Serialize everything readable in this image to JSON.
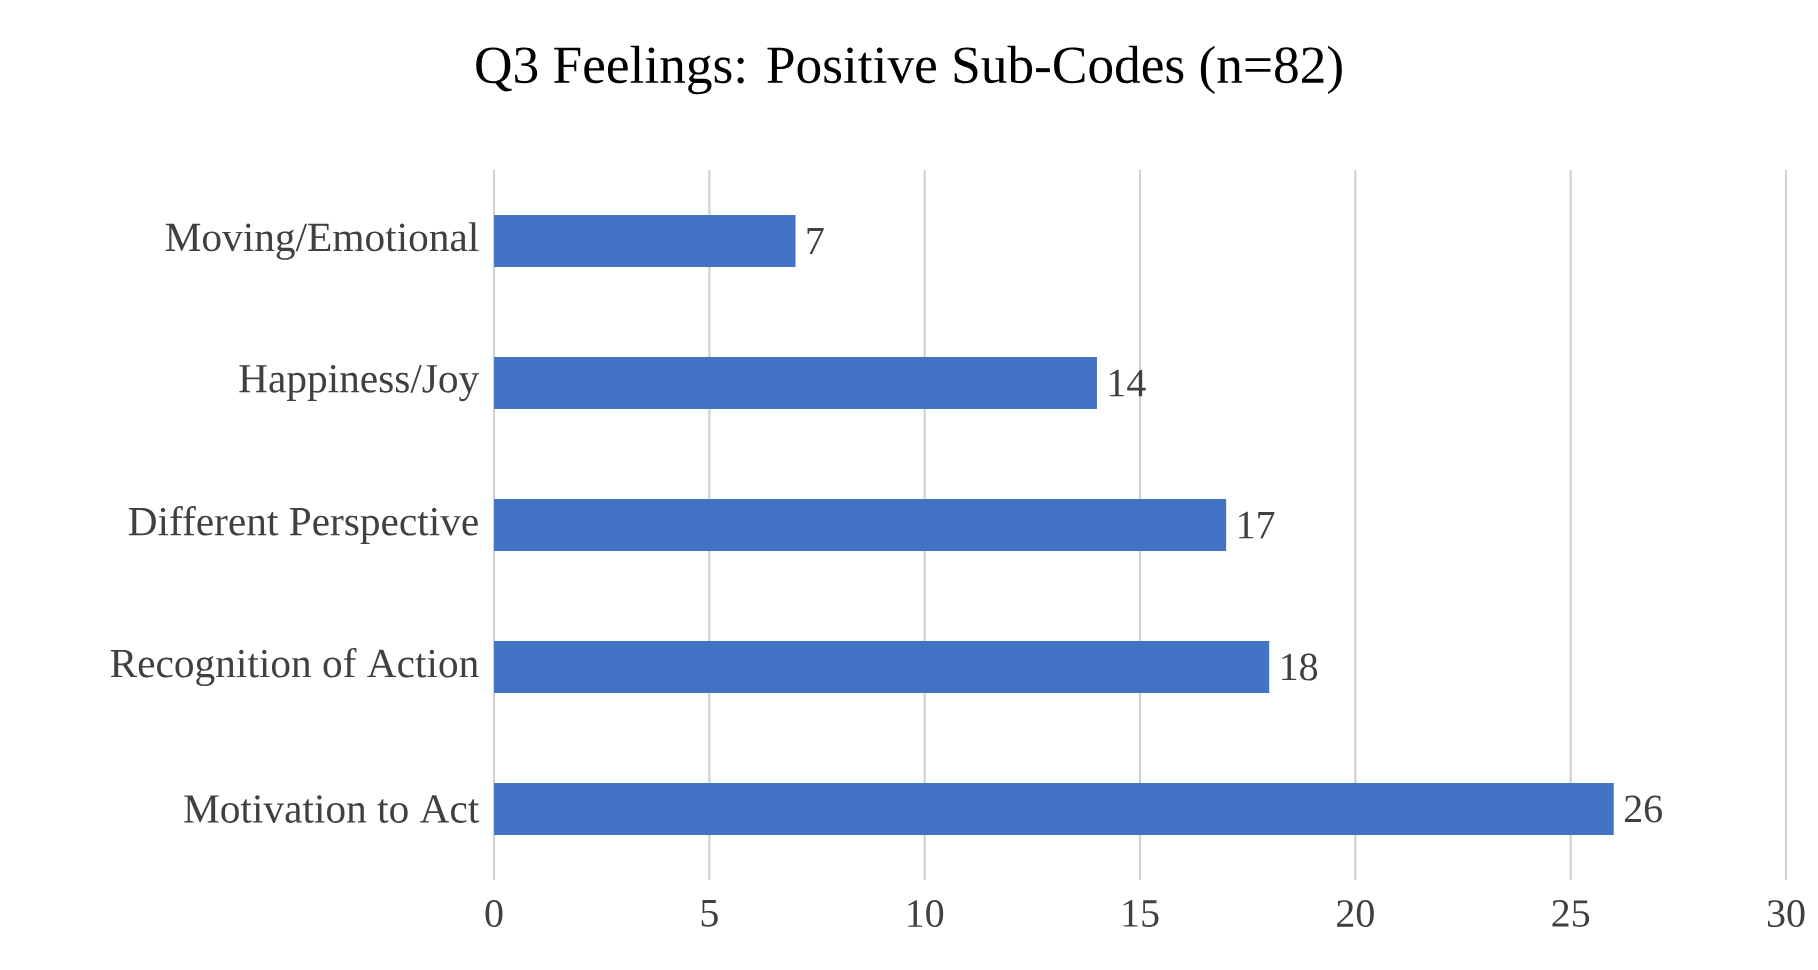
{
  "chart_data": {
    "type": "bar",
    "orientation": "horizontal",
    "title": "Q3 Feelings: Positive Sub-Codes (n=82)",
    "categories": [
      "Moving/Emotional",
      "Happiness/Joy",
      "Different Perspective",
      "Recognition of Action",
      "Motivation to Act"
    ],
    "values": [
      7,
      14,
      17,
      18,
      26
    ],
    "color": "#4472c4",
    "data_labels": true,
    "xlim": [
      0,
      30
    ],
    "xticks": [
      0,
      5,
      10,
      15,
      20,
      25,
      30
    ],
    "grid": "x"
  }
}
